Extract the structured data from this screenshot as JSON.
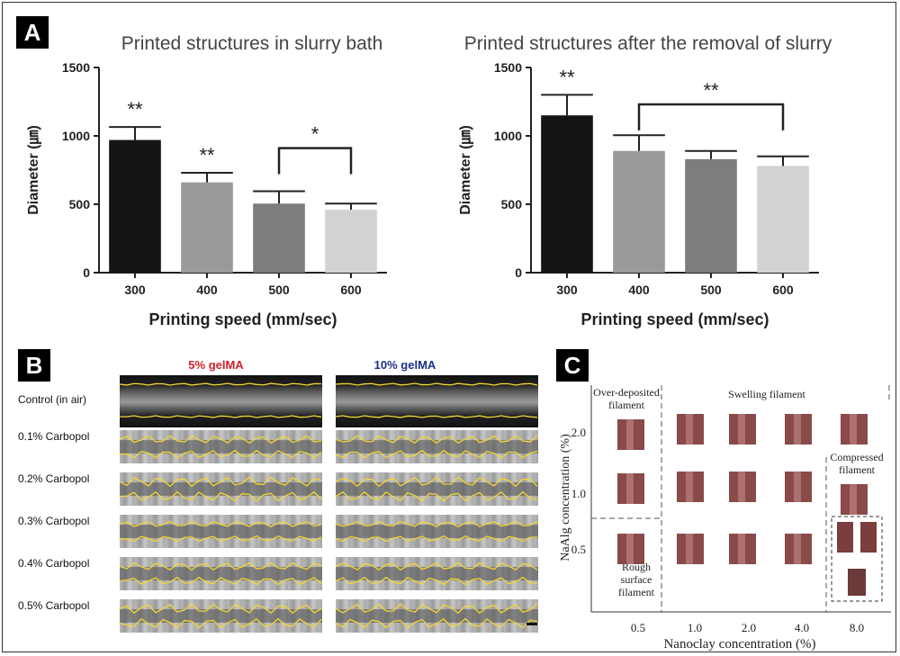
{
  "panels": {
    "a": "A",
    "b": "B",
    "c": "C"
  },
  "chart_data": [
    {
      "type": "bar",
      "title": "Printed structures in slurry bath",
      "xlabel": "Printing speed (mm/sec)",
      "ylabel": "Diameter (㎛)",
      "categories": [
        "300",
        "400",
        "500",
        "600"
      ],
      "values": [
        970,
        660,
        505,
        460
      ],
      "errors": [
        95,
        70,
        90,
        45
      ],
      "colors": [
        "#141414",
        "#9a9a9a",
        "#7d7d7d",
        "#d2d2d2"
      ],
      "ylim": [
        0,
        1500
      ],
      "yticks": [
        "0",
        "500",
        "1000",
        "1500"
      ],
      "annotations": {
        "bar_stars": [
          "**",
          "**",
          "",
          ""
        ],
        "bracket": {
          "from": "500",
          "to": "600",
          "label": "*"
        }
      }
    },
    {
      "type": "bar",
      "title": "Printed structures after the removal of slurry",
      "xlabel": "Printing speed (mm/sec)",
      "ylabel": "Diameter (㎛)",
      "categories": [
        "300",
        "400",
        "500",
        "600"
      ],
      "values": [
        1150,
        890,
        830,
        780
      ],
      "errors": [
        150,
        115,
        60,
        70
      ],
      "colors": [
        "#141414",
        "#9a9a9a",
        "#7d7d7d",
        "#d2d2d2"
      ],
      "ylim": [
        0,
        1500
      ],
      "yticks": [
        "0",
        "500",
        "1000",
        "1500"
      ],
      "annotations": {
        "bar_stars": [
          "**",
          "",
          "",
          ""
        ],
        "bracket": {
          "from": "400",
          "to": "600",
          "label": "**"
        }
      }
    }
  ],
  "panel_b": {
    "col1": "5% gelMA",
    "col2": "10% gelMA",
    "col1_color": "#d0202a",
    "col2_color": "#1c2f8c",
    "rows": [
      "Control (in air)",
      "0.1% Carbopol",
      "0.2% Carbopol",
      "0.3% Carbopol",
      "0.4% Carbopol",
      "0.5% Carbopol"
    ]
  },
  "panel_c": {
    "xlabel": "Nanoclay concentration (%)",
    "ylabel": "NaAlg concentration (%)",
    "xticks": [
      "0.5",
      "1.0",
      "2.0",
      "4.0",
      "8.0"
    ],
    "yticks": [
      "2.0",
      "1.0",
      "0.5"
    ],
    "regions": {
      "over": "Over-deposited filament",
      "swelling": "Swelling filament",
      "compressed": "Compressed filament",
      "rough": "Rough surface filament"
    }
  }
}
